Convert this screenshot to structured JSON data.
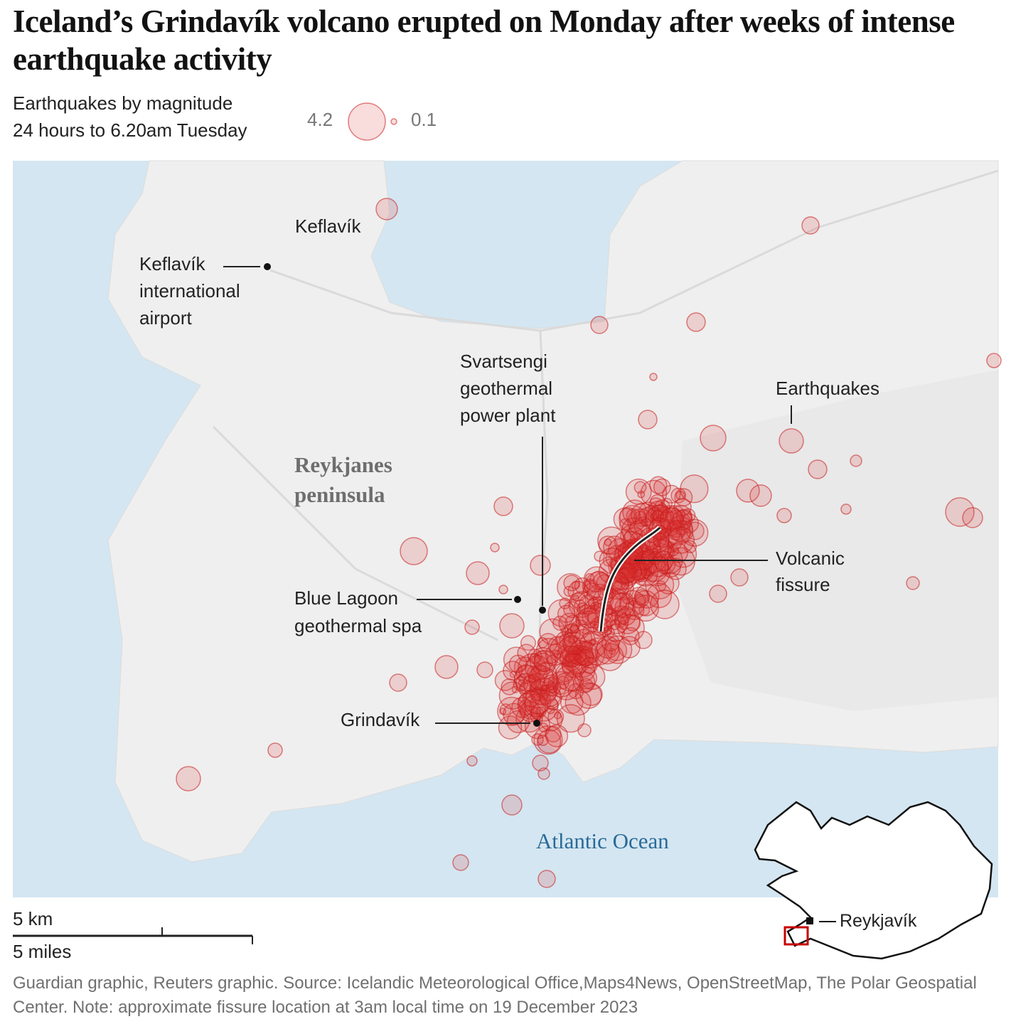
{
  "header": {
    "title": "Iceland’s Grindavík volcano erupted on Monday after weeks of intense earthquake activity",
    "subtitle": [
      "Earthquakes by magnitude",
      "24 hours to 6.20am Tuesday"
    ]
  },
  "legend": {
    "max": 4.2,
    "min": 0.1
  },
  "labels": {
    "keflavik": "Keflavík",
    "airport": [
      "Keflavík",
      "international",
      "airport"
    ],
    "svartsengi": [
      "Svartsengi",
      "geothermal",
      "power plant"
    ],
    "peninsula": [
      "Reykjanes",
      "peninsula"
    ],
    "blue_lagoon": [
      "Blue Lagoon",
      "geothermal spa"
    ],
    "grindavik": "Grindavík",
    "earthquakes": "Earthquakes",
    "fissure": [
      "Volcanic",
      "fissure"
    ],
    "ocean": "Atlantic Ocean",
    "reykjavik": "Reykjavík"
  },
  "scale": {
    "km": "5 km",
    "miles": "5 miles"
  },
  "source": "Guardian graphic, Reuters graphic. Source: Icelandic Meteorological Office,Maps4News, OpenStreetMap, The Polar Geospatial Center. Note: approximate fissure location at 3am local time on 19 December 2023"
}
